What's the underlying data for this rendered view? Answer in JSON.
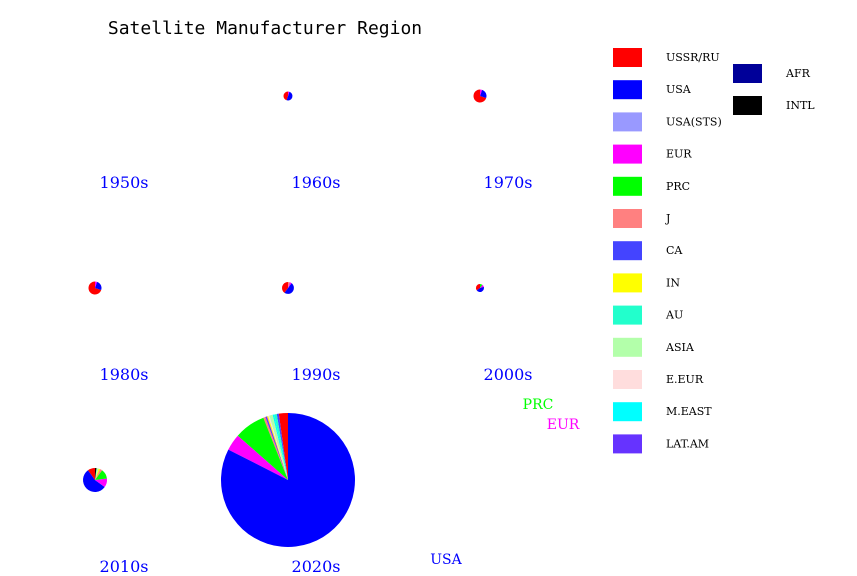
{
  "chart_data": {
    "type": "pie",
    "title": "Satellite Manufacturer Region",
    "legend": {
      "placement": "right",
      "entries": [
        {
          "label": "USSR/RU",
          "color": "#ff0000"
        },
        {
          "label": "USA",
          "color": "#0000ff"
        },
        {
          "label": "USA(STS)",
          "color": "#9999ff"
        },
        {
          "label": "EUR",
          "color": "#ff00ff"
        },
        {
          "label": "PRC",
          "color": "#00ff00"
        },
        {
          "label": "J",
          "color": "#ff8080"
        },
        {
          "label": "CA",
          "color": "#4444ff"
        },
        {
          "label": "IN",
          "color": "#ffff00"
        },
        {
          "label": "AU",
          "color": "#22ffcc"
        },
        {
          "label": "ASIA",
          "color": "#b3ffaa"
        },
        {
          "label": "E.EUR",
          "color": "#ffdddd"
        },
        {
          "label": "M.EAST",
          "color": "#00ffff"
        },
        {
          "label": "LAT.AM",
          "color": "#6633ff"
        },
        {
          "label": "AFR",
          "color": "#000099"
        },
        {
          "label": "INTL",
          "color": "#000000"
        }
      ]
    },
    "panels": [
      {
        "decade": "1950s",
        "radius": 0,
        "slices": []
      },
      {
        "decade": "1960s",
        "radius": 4.5,
        "slices": [
          {
            "region": "USSR/RU",
            "value": 45
          },
          {
            "region": "USA",
            "value": 50
          },
          {
            "region": "EUR",
            "value": 5
          }
        ]
      },
      {
        "decade": "1970s",
        "radius": 6.5,
        "slices": [
          {
            "region": "USSR/RU",
            "value": 70
          },
          {
            "region": "USA",
            "value": 25
          },
          {
            "region": "EUR",
            "value": 5
          }
        ]
      },
      {
        "decade": "1980s",
        "radius": 6.5,
        "slices": [
          {
            "region": "USSR/RU",
            "value": 70
          },
          {
            "region": "USA",
            "value": 25
          },
          {
            "region": "EUR",
            "value": 5
          }
        ]
      },
      {
        "decade": "1990s",
        "radius": 6,
        "slices": [
          {
            "region": "USSR/RU",
            "value": 40
          },
          {
            "region": "USA",
            "value": 50
          },
          {
            "region": "EUR",
            "value": 5
          },
          {
            "region": "J",
            "value": 5
          }
        ]
      },
      {
        "decade": "2000s",
        "radius": 4,
        "slices": [
          {
            "region": "USSR/RU",
            "value": 35
          },
          {
            "region": "USA",
            "value": 45
          },
          {
            "region": "EUR",
            "value": 10
          },
          {
            "region": "PRC",
            "value": 10
          }
        ]
      },
      {
        "decade": "2010s",
        "radius": 12,
        "slices": [
          {
            "region": "USSR/RU",
            "value": 10
          },
          {
            "region": "USA",
            "value": 55
          },
          {
            "region": "EUR",
            "value": 12
          },
          {
            "region": "PRC",
            "value": 13
          },
          {
            "region": "J",
            "value": 3
          },
          {
            "region": "IN",
            "value": 2
          },
          {
            "region": "ASIA",
            "value": 3
          },
          {
            "region": "INTL",
            "value": 2
          }
        ]
      },
      {
        "decade": "2020s",
        "radius": 67,
        "slices": [
          {
            "region": "USSR/RU",
            "value": 2.2,
            "label": ""
          },
          {
            "region": "CA",
            "value": 0.5,
            "label": ""
          },
          {
            "region": "AU",
            "value": 0.6,
            "label": ""
          },
          {
            "region": "M.EAST",
            "value": 0.4,
            "label": ""
          },
          {
            "region": "ASIA",
            "value": 0.8,
            "label": ""
          },
          {
            "region": "E.EUR",
            "value": 0.3,
            "label": ""
          },
          {
            "region": "IN",
            "value": 0.3,
            "label": ""
          },
          {
            "region": "LAT.AM",
            "value": 0.4,
            "label": ""
          },
          {
            "region": "J",
            "value": 0.5,
            "label": ""
          },
          {
            "region": "PRC",
            "value": 7.5,
            "label": "PRC"
          },
          {
            "region": "EUR",
            "value": 4,
            "label": "EUR"
          },
          {
            "region": "USA",
            "value": 82.5,
            "label": "USA"
          }
        ]
      }
    ]
  }
}
